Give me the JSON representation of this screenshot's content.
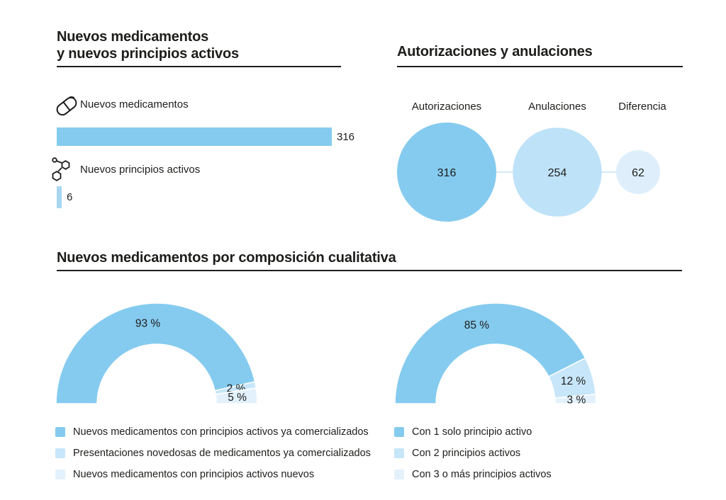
{
  "colors": {
    "primary": "#85CBEF",
    "secondary": "#C8E6F9",
    "tertiary": "#E2F1FC",
    "small_bar": "#A9D7F2",
    "connector": "#A9D7F2",
    "text": "#1D1D1B"
  },
  "sections": {
    "new_meds": {
      "title_line1": "Nuevos medicamentos",
      "title_line2": "y nuevos principios activos"
    },
    "authorizations": {
      "title": "Autorizaciones y anulaciones"
    },
    "composition": {
      "title": "Nuevos medicamentos por composición cualitativa"
    }
  },
  "chart_data": [
    {
      "type": "bar",
      "orientation": "horizontal",
      "title": "Nuevos medicamentos y nuevos principios activos",
      "categories": [
        "Nuevos medicamentos",
        "Nuevos principios activos"
      ],
      "values": [
        316,
        6
      ],
      "bar_colors": [
        "#85CBEF",
        "#A9D7F2"
      ],
      "icons": [
        "pill-icon",
        "molecule-icon"
      ],
      "xlim": [
        0,
        316
      ],
      "grid": false
    },
    {
      "type": "scatter",
      "subtype": "proportional-area-bubbles",
      "title": "Autorizaciones y anulaciones",
      "categories": [
        "Autorizaciones",
        "Anulaciones",
        "Diferencia"
      ],
      "values": [
        316,
        254,
        62
      ],
      "colors": [
        "#85CBEF",
        "#BEE2F8",
        "#DEEFFB"
      ],
      "connector_color": "#A9D7F2"
    },
    {
      "type": "pie",
      "subtype": "half-donut",
      "title": "Nuevos medicamentos por composición cualitativa (izquierda)",
      "labels": [
        "Nuevos medicamentos con principios activos ya comercializados",
        "Presentaciones novedosas de medicamentos ya comercializados",
        "Nuevos medicamentos con principios activos nuevos"
      ],
      "values": [
        93,
        2,
        5
      ],
      "unit": "%",
      "colors": [
        "#85CBEF",
        "#C8E6F9",
        "#E2F1FC"
      ],
      "legend_position": "bottom"
    },
    {
      "type": "pie",
      "subtype": "half-donut",
      "title": "Nuevos medicamentos por composición cualitativa (derecha)",
      "labels": [
        "Con 1 solo principio activo",
        "Con 2 principios activos",
        "Con 3 o más principios activos"
      ],
      "values": [
        85,
        12,
        3
      ],
      "unit": "%",
      "colors": [
        "#85CBEF",
        "#C8E6F9",
        "#E2F1FC"
      ],
      "legend_position": "bottom"
    }
  ]
}
